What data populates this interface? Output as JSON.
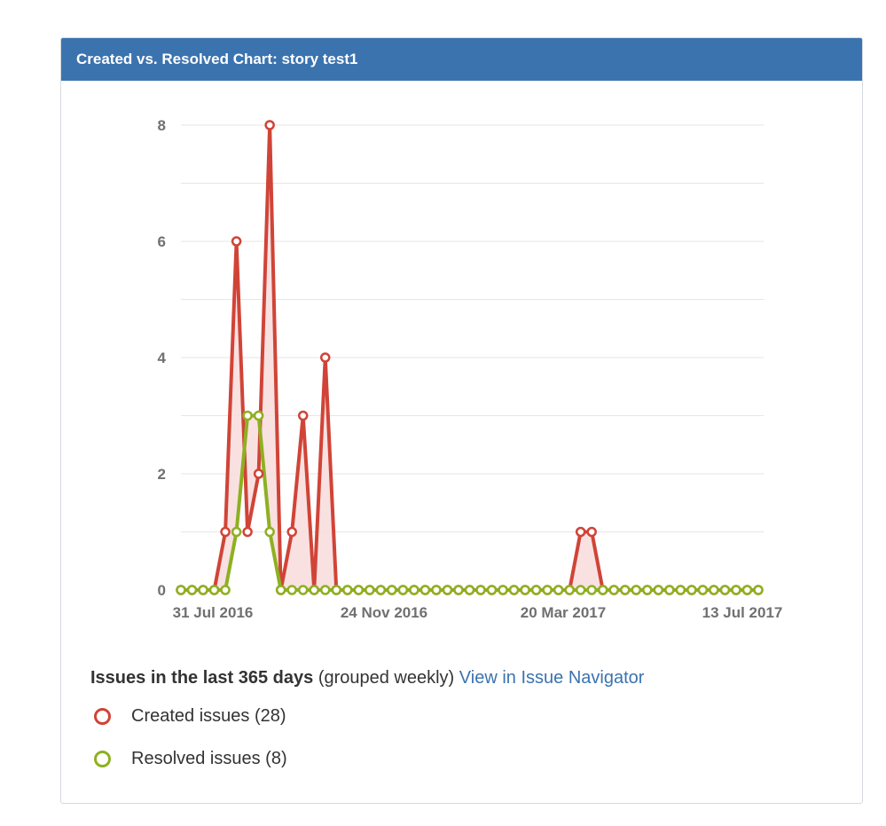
{
  "gadget": {
    "title": "Created vs. Resolved Chart: story test1"
  },
  "summary": {
    "bold": "Issues in the last 365 days",
    "grouping": "(grouped weekly)",
    "link": "View in Issue Navigator"
  },
  "legend": [
    {
      "label": "Created issues (28)",
      "color": "#d04437"
    },
    {
      "label": "Resolved issues (8)",
      "color": "#8eb021"
    }
  ],
  "chart_data": {
    "type": "area",
    "title": "",
    "xlabel": "",
    "ylabel": "",
    "ylim": [
      0,
      8
    ],
    "yticks": [
      0,
      2,
      4,
      6,
      8
    ],
    "xtick_labels": [
      "31 Jul 2016",
      "24 Nov 2016",
      "20 Mar 2017",
      "13 Jul 2017"
    ],
    "grid": true,
    "colors": {
      "created": "#d04437",
      "resolved": "#8eb021",
      "gap_fill": "#f8dcdc"
    },
    "series": [
      {
        "name": "Created issues (28)",
        "values": [
          0,
          0,
          0,
          0,
          1,
          6,
          1,
          2,
          8,
          0,
          1,
          3,
          0,
          4,
          0,
          0,
          0,
          0,
          0,
          0,
          0,
          0,
          0,
          0,
          0,
          0,
          0,
          0,
          0,
          0,
          0,
          0,
          0,
          0,
          0,
          0,
          1,
          1,
          0,
          0,
          0,
          0,
          0,
          0,
          0,
          0,
          0,
          0,
          0,
          0,
          0,
          0,
          0
        ]
      },
      {
        "name": "Resolved issues (8)",
        "values": [
          0,
          0,
          0,
          0,
          0,
          1,
          3,
          3,
          1,
          0,
          0,
          0,
          0,
          0,
          0,
          0,
          0,
          0,
          0,
          0,
          0,
          0,
          0,
          0,
          0,
          0,
          0,
          0,
          0,
          0,
          0,
          0,
          0,
          0,
          0,
          0,
          0,
          0,
          0,
          0,
          0,
          0,
          0,
          0,
          0,
          0,
          0,
          0,
          0,
          0,
          0,
          0,
          0
        ]
      }
    ]
  }
}
